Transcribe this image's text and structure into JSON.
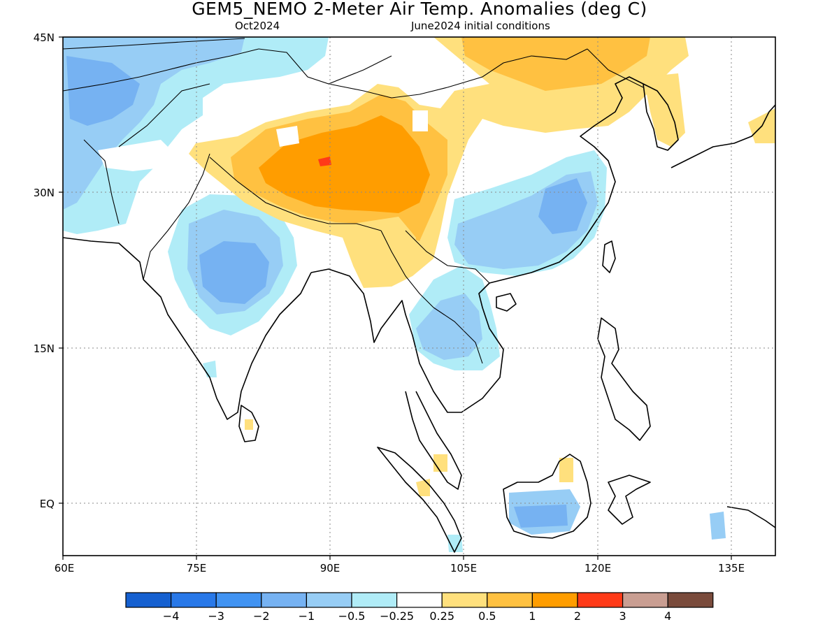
{
  "header": {
    "title": "GEM5_NEMO 2-Meter Air Temp. Anomalies (deg C)",
    "valid_month": "Oct2024",
    "init": "June2024 initial conditions"
  },
  "axes": {
    "lat_labels": [
      "45N",
      "30N",
      "15N",
      "EQ"
    ],
    "lon_labels": [
      "60E",
      "75E",
      "90E",
      "105E",
      "120E",
      "135E"
    ],
    "lon_range": [
      60,
      140
    ],
    "lat_range": [
      -5,
      45
    ]
  },
  "legend": {
    "colors": [
      "#1560d0",
      "#2878e8",
      "#4193f2",
      "#76b2f2",
      "#97cdf5",
      "#b0ecf7",
      "#ffffff",
      "#ffe07d",
      "#ffc141",
      "#ff9d00",
      "#ff3a18",
      "#c99e92",
      "#7a4b3c"
    ],
    "labels": [
      "-4",
      "-3",
      "-2",
      "-1",
      "-0.5",
      "-0.25",
      "0.25",
      "0.5",
      "1",
      "2",
      "3",
      "4"
    ]
  }
}
